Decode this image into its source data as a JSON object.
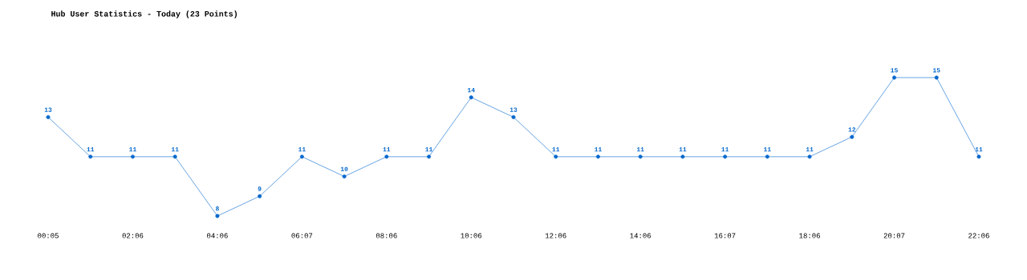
{
  "chart_data": {
    "type": "line",
    "title": "Hub User Statistics - Today (23 Points)",
    "categories": [
      "00:05",
      null,
      "02:06",
      null,
      "04:06",
      null,
      "06:07",
      null,
      "08:06",
      null,
      "10:06",
      null,
      "12:06",
      null,
      "14:06",
      null,
      "16:07",
      null,
      "18:06",
      null,
      "20:07",
      null,
      "22:06"
    ],
    "series": [
      {
        "color": "#0066cc",
        "values": [
          13,
          11,
          11,
          11,
          8,
          9,
          11,
          10,
          11,
          11,
          14,
          13,
          11,
          11,
          11,
          11,
          11,
          11,
          11,
          12,
          15,
          15,
          11
        ]
      }
    ],
    "data_labels": true,
    "marker": "circle",
    "line_style": "solid",
    "tick_labels": "x",
    "grid": false
  }
}
